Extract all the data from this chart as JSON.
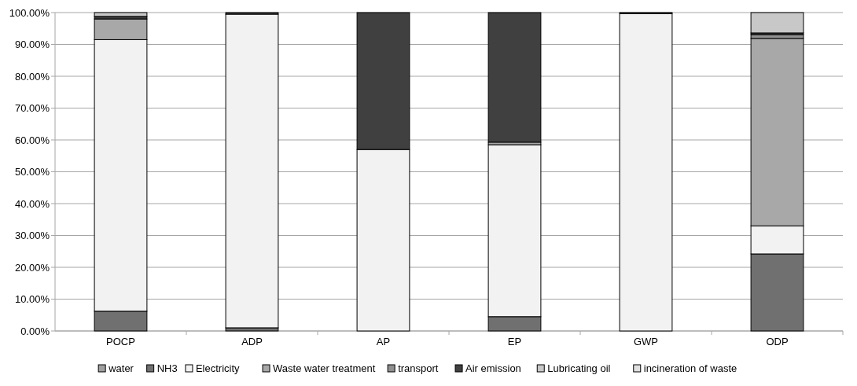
{
  "chart_data": {
    "type": "bar",
    "stacked": true,
    "categories": [
      "POCP",
      "ADP",
      "AP",
      "EP",
      "GWP",
      "ODP"
    ],
    "series": [
      {
        "name": "water",
        "color": "#a0a0a0",
        "values": [
          0,
          0,
          0,
          0,
          0,
          0
        ]
      },
      {
        "name": "NH3",
        "color": "#707070",
        "values": [
          6.2,
          1,
          0,
          4.5,
          0,
          24.2
        ]
      },
      {
        "name": "Electricity",
        "color": "#f2f2f2",
        "values": [
          85.3,
          98.5,
          57,
          54,
          99.7,
          8.8
        ]
      },
      {
        "name": "Waste water treatment",
        "color": "#a8a8a8",
        "values": [
          6.5,
          0,
          0,
          0.8,
          0,
          58.9
        ]
      },
      {
        "name": "transport",
        "color": "#909090",
        "values": [
          0,
          0,
          0,
          0,
          0,
          1.2
        ]
      },
      {
        "name": "Air emission",
        "color": "#404040",
        "values": [
          0.8,
          0.5,
          43,
          40.7,
          0.3,
          0.5
        ]
      },
      {
        "name": "Lubricating oil",
        "color": "#c8c8c8",
        "values": [
          1.2,
          0,
          0,
          0,
          0,
          6.4
        ]
      },
      {
        "name": "incineration of waste",
        "color": "#e0e0e0",
        "values": [
          0,
          0,
          0,
          0,
          0,
          0
        ]
      }
    ],
    "ylim": [
      0,
      100
    ],
    "yticks": [
      {
        "value": 0,
        "label": "0.00%"
      },
      {
        "value": 10,
        "label": "10.00%"
      },
      {
        "value": 20,
        "label": "20.00%"
      },
      {
        "value": 30,
        "label": "30.00%"
      },
      {
        "value": 40,
        "label": "40.00%"
      },
      {
        "value": 50,
        "label": "50.00%"
      },
      {
        "value": 60,
        "label": "60.00%"
      },
      {
        "value": 70,
        "label": "70.00%"
      },
      {
        "value": 80,
        "label": "80.00%"
      },
      {
        "value": 90,
        "label": "90.00%"
      },
      {
        "value": 100,
        "label": "100.00%"
      }
    ],
    "grid": "y",
    "legend": "bottom"
  }
}
